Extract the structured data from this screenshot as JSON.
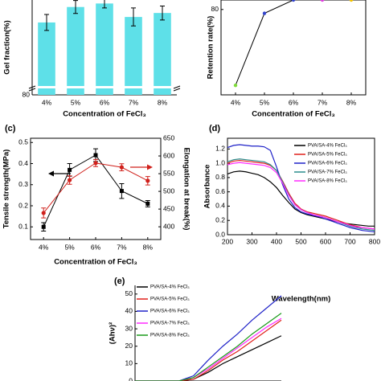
{
  "chart_data": [
    {
      "type": "bar",
      "ylabel": "Gel fraction(%)",
      "xlabel": "Concentration of FeCl₃",
      "categories": [
        "4%",
        "5%",
        "6%",
        "7%",
        "8%"
      ],
      "values": [
        94.5,
        97.6,
        98.3,
        95.6,
        96.4
      ],
      "errors": [
        1.6,
        1.3,
        0.9,
        1.8,
        1.4
      ],
      "color": "#5ee0e8",
      "ylim": [
        80,
        99
      ],
      "yticks": [
        80
      ]
    },
    {
      "type": "line",
      "ylabel": "Retention rate(%)",
      "xlabel": "Concentration of FeCl₃",
      "categories": [
        "4%",
        "5%",
        "6%",
        "7%",
        "8%"
      ],
      "values": [
        0,
        76,
        90,
        90,
        90
      ],
      "color": "#000000",
      "marker_colors": [
        "#7fdc3a",
        "#3344cc",
        "#3344cc",
        "#e040e0",
        "#f2c200"
      ],
      "ylim": [
        -10,
        90
      ],
      "yticks": [
        80
      ]
    },
    {
      "type": "line",
      "label": "(c)",
      "ylabel": "Tensile strength(MPa)",
      "y2label": "Elongation at break(%)",
      "xlabel": "Concentration of FeCl₃",
      "categories": [
        "4%",
        "5%",
        "6%",
        "7%",
        "8%"
      ],
      "series": [
        {
          "color": "#000000",
          "marker": "square",
          "values": [
            0.1,
            0.37,
            0.44,
            0.27,
            0.21
          ],
          "errors": [
            0.02,
            0.03,
            0.03,
            0.035,
            0.015
          ]
        },
        {
          "color": "#d0201b",
          "marker": "circle",
          "axis": "y2",
          "values": [
            439,
            532,
            580,
            568,
            530
          ],
          "errors": [
            14,
            12,
            10,
            10,
            12
          ]
        }
      ],
      "ylim": [
        0.04,
        0.52
      ],
      "yticks": [
        0.1,
        0.2,
        0.3,
        0.4,
        0.5
      ],
      "y2lim": [
        364,
        650
      ],
      "y2ticks": [
        400,
        450,
        500,
        550,
        600,
        650
      ]
    },
    {
      "type": "line",
      "label": "(d)",
      "ylabel": "Absorbance",
      "xlabel": "Wavelength(nm)",
      "x": [
        200,
        225,
        250,
        275,
        300,
        325,
        350,
        375,
        400,
        425,
        450,
        475,
        500,
        525,
        550,
        575,
        600,
        625,
        650,
        675,
        700,
        725,
        750,
        775,
        800
      ],
      "series": [
        {
          "name": "PVA/SA-4% FeCl₃",
          "color": "#000000",
          "values": [
            0.85,
            0.88,
            0.89,
            0.88,
            0.86,
            0.84,
            0.8,
            0.74,
            0.66,
            0.55,
            0.45,
            0.36,
            0.31,
            0.28,
            0.26,
            0.24,
            0.22,
            0.2,
            0.18,
            0.16,
            0.15,
            0.14,
            0.13,
            0.12,
            0.12
          ]
        },
        {
          "name": "PVA/SA-5% FeCl₃",
          "color": "#e0201b",
          "values": [
            1.0,
            1.03,
            1.04,
            1.03,
            1.02,
            1.01,
            1.0,
            0.97,
            0.9,
            0.75,
            0.58,
            0.44,
            0.36,
            0.32,
            0.3,
            0.28,
            0.26,
            0.23,
            0.2,
            0.17,
            0.14,
            0.12,
            0.1,
            0.09,
            0.08
          ]
        },
        {
          "name": "PVA/SA-6% FeCl₃",
          "color": "#1f22c8",
          "values": [
            1.22,
            1.25,
            1.26,
            1.25,
            1.24,
            1.24,
            1.23,
            1.18,
            0.95,
            0.7,
            0.5,
            0.38,
            0.32,
            0.29,
            0.27,
            0.25,
            0.22,
            0.19,
            0.16,
            0.13,
            0.1,
            0.08,
            0.06,
            0.05,
            0.04
          ]
        },
        {
          "name": "PVA/SA-7% FeCl₃",
          "color": "#2a8c8c",
          "values": [
            1.02,
            1.05,
            1.06,
            1.05,
            1.04,
            1.03,
            1.02,
            0.98,
            0.9,
            0.74,
            0.56,
            0.42,
            0.35,
            0.31,
            0.28,
            0.26,
            0.24,
            0.21,
            0.18,
            0.15,
            0.12,
            0.1,
            0.08,
            0.07,
            0.06
          ]
        },
        {
          "name": "PVA/SA-8% FeCl₃",
          "color": "#ff2aff",
          "values": [
            0.98,
            1.0,
            1.01,
            1.0,
            0.99,
            0.98,
            0.97,
            0.94,
            0.87,
            0.72,
            0.55,
            0.42,
            0.35,
            0.31,
            0.28,
            0.26,
            0.24,
            0.21,
            0.18,
            0.16,
            0.13,
            0.11,
            0.1,
            0.09,
            0.08
          ]
        }
      ],
      "xlim": [
        200,
        800
      ],
      "xticks": [
        200,
        300,
        400,
        500,
        600,
        700,
        800
      ],
      "ylim": [
        0,
        1.35
      ],
      "yticks": [
        {
          "value": 0,
          "label": "0.0"
        },
        0.2,
        0.4,
        0.6,
        0.8,
        {
          "value": 1,
          "label": "1.0"
        },
        1.2
      ]
    },
    {
      "type": "line",
      "label": "(e)",
      "ylabel": "(Ahν)²",
      "x": [
        0,
        10,
        20,
        30,
        40,
        50,
        60,
        70,
        80,
        90,
        100
      ],
      "series": [
        {
          "name": "PVA/SA-4% FeCl₃",
          "color": "#000000",
          "values": [
            0,
            0,
            0,
            0,
            1,
            5,
            10,
            14,
            18,
            22,
            26
          ]
        },
        {
          "name": "PVA/SA-5% FeCl₃",
          "color": "#e0201b",
          "values": [
            0,
            0,
            0,
            0,
            1,
            6,
            12,
            17,
            23,
            29,
            35
          ]
        },
        {
          "name": "PVA/SA-6% FeCl₃",
          "color": "#1f22c8",
          "values": [
            0,
            0,
            0,
            0,
            3,
            12,
            20,
            27,
            35,
            42,
            49
          ]
        },
        {
          "name": "PVA/SA-7% FeCl₃",
          "color": "#ff2aff",
          "values": [
            0,
            0,
            0,
            0,
            2,
            7,
            13,
            19,
            25,
            31,
            36
          ]
        },
        {
          "name": "PVA/SA-8% FeCl₃",
          "color": "#1a9a1a",
          "values": [
            0,
            0,
            0,
            0,
            2,
            8,
            14,
            20,
            27,
            33,
            39
          ]
        }
      ],
      "xlim": [
        0,
        100
      ],
      "ylim": [
        0,
        55
      ],
      "yticks": [
        0,
        10,
        20,
        30,
        40,
        50
      ]
    }
  ]
}
